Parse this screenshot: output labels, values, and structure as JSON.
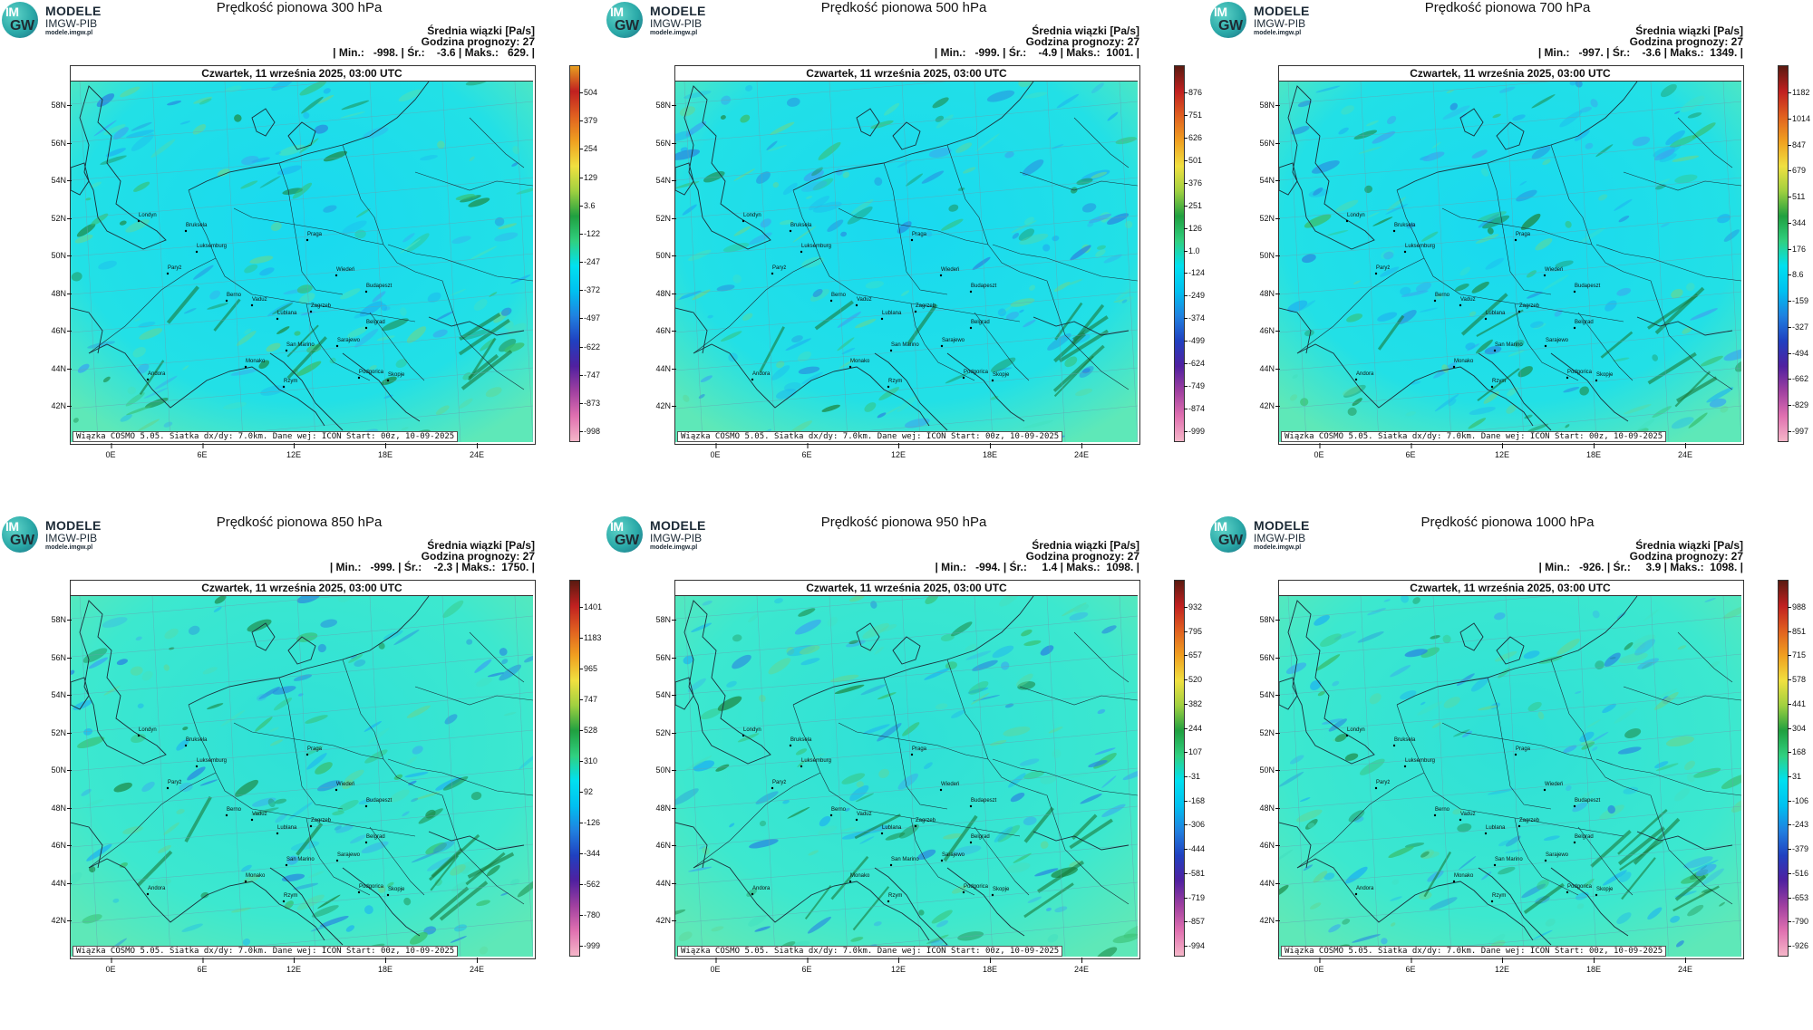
{
  "logo": {
    "mark_top": "IM",
    "mark_bottom": "GW",
    "line1": "MODELE",
    "line2": "IMGW-PIB",
    "line3": "modele.imgw.pl"
  },
  "common": {
    "info_line1": "Średnia wiązki [Pa/s]",
    "info_line2": "Godzina prognozy: 27",
    "date_bar": "Czwartek, 11 września 2025, 03:00 UTC",
    "footer": "Wiązka COSMO 5.05. Siatka dx/dy: 7.0km. Dane wej: ICON Start: 00z, 10-09-2025",
    "lat_labels": [
      "58N",
      "56N",
      "54N",
      "52N",
      "50N",
      "48N",
      "46N",
      "44N",
      "42N"
    ],
    "lon_labels": [
      "0E",
      "6E",
      "12E",
      "18E",
      "24E"
    ],
    "cities": [
      "Londyn",
      "Bruksela",
      "Luksemburg",
      "Paryż",
      "Praga",
      "Wiedeń",
      "Budapeszt",
      "Berno",
      "Vaduz",
      "Lublana",
      "Zagrzeb",
      "Belgrad",
      "Sarajewo",
      "San Marino",
      "Monako",
      "Andora",
      "Skopje",
      "Rzym",
      "Podgorica"
    ]
  },
  "panels": [
    {
      "title": "Prędkość pionowa 300 hPa",
      "stats": "| Min.:   -998. | Śr.:    -3.6 | Maks.:   629. |",
      "colorbar_labels": [
        "504",
        "379",
        "254",
        "129",
        "3.6",
        "-122",
        "-247",
        "-372",
        "-497",
        "-622",
        "-747",
        "-873",
        "-998"
      ],
      "colorbar_top": "#e8a020"
    },
    {
      "title": "Prędkość pionowa 500 hPa",
      "stats": "| Min.:   -999. | Śr.:    -4.9 | Maks.:  1001. |",
      "colorbar_labels": [
        "876",
        "751",
        "626",
        "501",
        "376",
        "251",
        "126",
        "1.0",
        "-124",
        "-249",
        "-374",
        "-499",
        "-624",
        "-749",
        "-874",
        "-999"
      ],
      "colorbar_top": "#5a1a10"
    },
    {
      "title": "Prędkość pionowa 700 hPa",
      "stats": "| Min.:   -997. | Śr.:    -3.6 | Maks.:  1349. |",
      "colorbar_labels": [
        "1182",
        "1014",
        "847",
        "679",
        "511",
        "344",
        "176",
        "8.6",
        "-159",
        "-327",
        "-494",
        "-662",
        "-829",
        "-997"
      ],
      "colorbar_top": "#5a1a10"
    },
    {
      "title": "Prędkość pionowa 850 hPa",
      "stats": "| Min.:   -999. | Śr.:    -2.3 | Maks.:  1750. |",
      "colorbar_labels": [
        "1401",
        "1183",
        "965",
        "747",
        "528",
        "310",
        "92",
        "-126",
        "-344",
        "-562",
        "-780",
        "-999"
      ],
      "colorbar_top": "#5a1a10"
    },
    {
      "title": "Prędkość pionowa 950 hPa",
      "stats": "| Min.:   -994. | Śr.:     1.4 | Maks.:  1098. |",
      "colorbar_labels": [
        "932",
        "795",
        "657",
        "520",
        "382",
        "244",
        "107",
        "-31",
        "-168",
        "-306",
        "-444",
        "-581",
        "-719",
        "-857",
        "-994"
      ],
      "colorbar_top": "#5a1a10"
    },
    {
      "title": "Prędkość pionowa 1000 hPa",
      "stats": "| Min.:   -926. | Śr.:     3.9 | Maks.:  1098. |",
      "colorbar_labels": [
        "988",
        "851",
        "715",
        "578",
        "441",
        "304",
        "168",
        "31",
        "-106",
        "-243",
        "-379",
        "-516",
        "-653",
        "-790",
        "-926"
      ],
      "colorbar_top": "#5a1a10"
    }
  ]
}
